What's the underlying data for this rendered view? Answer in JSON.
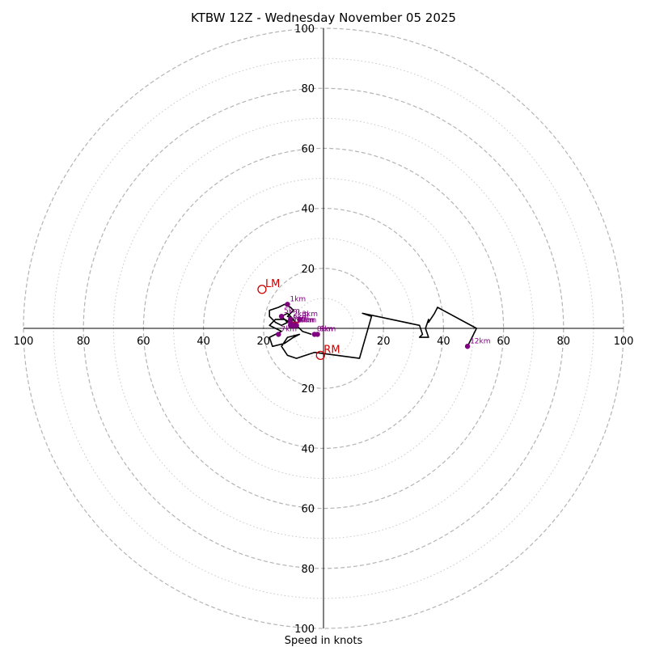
{
  "title": "KTBW 12Z - Wednesday November 05 2025",
  "xlabel": "Speed in knots",
  "chart_data": {
    "type": "hodograph",
    "units": "knots",
    "rings": {
      "major": [
        20,
        40,
        60,
        80,
        100
      ],
      "minor": [
        10,
        30,
        50,
        70,
        90
      ],
      "major_style": "dashed",
      "minor_style": "dotted"
    },
    "axis_tick_labels": [
      "20",
      "40",
      "60",
      "80",
      "100"
    ],
    "hodograph_trace": {
      "color": "#000000",
      "points": [
        [
          -4,
          -2
        ],
        [
          -7,
          -1
        ],
        [
          -9,
          1
        ],
        [
          -10,
          3
        ],
        [
          -12,
          5
        ],
        [
          -14,
          4
        ],
        [
          -12,
          2
        ],
        [
          -14,
          1
        ],
        [
          -16,
          2
        ],
        [
          -18,
          4
        ],
        [
          -18,
          6
        ],
        [
          -15,
          7
        ],
        [
          -13,
          8
        ],
        [
          -11,
          7
        ],
        [
          -10,
          6
        ],
        [
          -12,
          4
        ],
        [
          -10,
          3
        ],
        [
          -11,
          2
        ],
        [
          -13,
          3
        ],
        [
          -16,
          3
        ],
        [
          -18,
          1
        ],
        [
          -16,
          0
        ],
        [
          -14,
          -1
        ],
        [
          -18,
          -3
        ],
        [
          -17,
          -6
        ],
        [
          -13,
          -5
        ],
        [
          -10,
          -3
        ],
        [
          -8,
          -2
        ],
        [
          -12,
          -3
        ],
        [
          -14,
          -6
        ],
        [
          -12,
          -9
        ],
        [
          -9,
          -10
        ],
        [
          -6,
          -9
        ],
        [
          -3,
          -8
        ],
        [
          12,
          -10
        ],
        [
          16,
          4
        ],
        [
          13,
          5
        ],
        [
          32,
          1
        ],
        [
          33,
          -2
        ],
        [
          32,
          -3
        ],
        [
          35,
          -3
        ],
        [
          34,
          0
        ],
        [
          35,
          3
        ],
        [
          35,
          2
        ],
        [
          37,
          5
        ],
        [
          38,
          7
        ],
        [
          51,
          0
        ],
        [
          48,
          -6
        ]
      ]
    },
    "height_markers": {
      "color": "#800080",
      "points": [
        {
          "label": "1km",
          "u": -12,
          "v": 8
        },
        {
          "label": "2km",
          "u": -11,
          "v": 3
        },
        {
          "label": "3km",
          "u": -8,
          "v": 3
        },
        {
          "label": "4km",
          "u": -9,
          "v": 1
        },
        {
          "label": "5km",
          "u": -14,
          "v": 4
        },
        {
          "label": "6km",
          "u": -11,
          "v": 2
        },
        {
          "label": "7km",
          "u": -15,
          "v": -2
        },
        {
          "label": "8km",
          "u": -3,
          "v": -2
        },
        {
          "label": "9km",
          "u": -2,
          "v": -2
        },
        {
          "label": "10km",
          "u": -10,
          "v": 1
        },
        {
          "label": "11km",
          "u": -11,
          "v": 1
        },
        {
          "label": "12km",
          "u": 48,
          "v": -6
        }
      ]
    },
    "storm_motions": {
      "color": "#cc0000",
      "points": [
        {
          "label": "LM",
          "u": -20.5,
          "v": 13
        },
        {
          "label": "RM",
          "u": -1,
          "v": -9
        }
      ],
      "shear_vector": {
        "from": [
          -12,
          2
        ],
        "to": [
          -8,
          2
        ]
      }
    },
    "xlim": [
      -100,
      100
    ],
    "ylim": [
      -100,
      100
    ]
  }
}
